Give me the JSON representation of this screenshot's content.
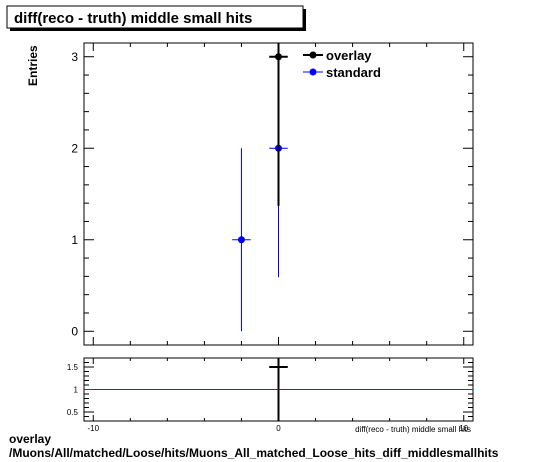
{
  "title": "diff(reco - truth) middle small hits",
  "footer": {
    "line1": "overlay",
    "line2": "/Muons/All/matched/Loose/hits/Muons_All_matched_Loose_hits_diff_middlesmallhits"
  },
  "chart_data": [
    {
      "type": "scatter",
      "title": "diff(reco - truth) middle small hits",
      "xlabel": "diff(reco - truth) middle small hits",
      "ylabel": "Entries",
      "xlim": [
        -10.5,
        10.5
      ],
      "ylim": [
        -0.15,
        3.15
      ],
      "x_ticks": [
        {
          "value": -10,
          "label": "-10"
        },
        {
          "value": 0,
          "label": "0"
        },
        {
          "value": 10,
          "label": "10"
        }
      ],
      "y_ticks": [
        {
          "value": 0,
          "label": "0"
        },
        {
          "value": 1,
          "label": "1"
        },
        {
          "value": 2,
          "label": "2"
        },
        {
          "value": 3,
          "label": "3"
        }
      ],
      "legend": "top-right",
      "series": [
        {
          "name": "overlay",
          "color": "#000000",
          "points": [
            {
              "x": 0,
              "y": 3,
              "err_low": 1.63,
              "err_high": 2.92,
              "xerr": 0.5
            }
          ]
        },
        {
          "name": "standard",
          "color": "#0000ff",
          "points": [
            {
              "x": -2,
              "y": 1,
              "err_low": 1,
              "err_high": 1,
              "xerr": 0.5
            },
            {
              "x": 0,
              "y": 2,
              "err_low": 1.41,
              "err_high": 1.41,
              "xerr": 0.5
            }
          ]
        }
      ]
    },
    {
      "type": "scatter",
      "xlim": [
        -10.5,
        10.5
      ],
      "ylim": [
        0.3,
        1.7
      ],
      "x_ticks": [
        {
          "value": -10,
          "label": "-10"
        },
        {
          "value": 0,
          "label": "0"
        },
        {
          "value": 10,
          "label": "10"
        }
      ],
      "y_ticks": [
        {
          "value": 0.5,
          "label": "0.5"
        },
        {
          "value": 1,
          "label": "1"
        },
        {
          "value": 1.5,
          "label": "1.5"
        }
      ],
      "reference_line": {
        "y": 1,
        "color": "#cc0000"
      },
      "series": [
        {
          "color": "#000000",
          "points": [
            {
              "x": 0,
              "y": 1.5,
              "err_low": 1.2,
              "err_high": 1.2,
              "xerr": 0.5
            }
          ]
        }
      ]
    }
  ]
}
